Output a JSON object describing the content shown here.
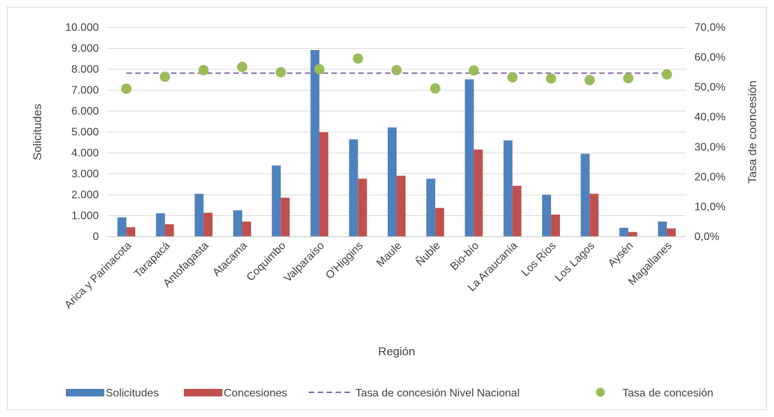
{
  "chart_data": {
    "type": "bar",
    "categories": [
      "Arica y Parinacota",
      "Tarapacá",
      "Antofagasta",
      "Atacama",
      "Coquimbo",
      "Valparaíso",
      "O'Higgins",
      "Maule",
      "Ñuble",
      "Bio-bío",
      "La Araucanía",
      "Los Ríos",
      "Los Lagos",
      "Aysén",
      "Magallanes"
    ],
    "series": [
      {
        "name": "Solicitudes",
        "kind": "bar",
        "axis": "left",
        "color": "#4f81bd",
        "values": [
          920,
          1120,
          2050,
          1260,
          3400,
          8920,
          4650,
          5220,
          2770,
          7520,
          4600,
          2000,
          3960,
          420,
          720
        ]
      },
      {
        "name": "Concesiones",
        "kind": "bar",
        "axis": "left",
        "color": "#c0504d",
        "values": [
          450,
          590,
          1140,
          720,
          1860,
          4990,
          2770,
          2910,
          1370,
          4160,
          2430,
          1050,
          2050,
          220,
          390
        ]
      },
      {
        "name": "Tasa de concesión Nivel Nacional",
        "kind": "line-dashed",
        "axis": "right",
        "color": "#8064a2",
        "values": [
          54.7,
          54.7,
          54.7,
          54.7,
          54.7,
          54.7,
          54.7,
          54.7,
          54.7,
          54.7,
          54.7,
          54.7,
          54.7,
          54.7,
          54.7
        ]
      },
      {
        "name": "Tasa de concesión",
        "kind": "scatter",
        "axis": "right",
        "color": "#9bbb59",
        "values": [
          49.5,
          53.5,
          55.7,
          56.8,
          55.0,
          56.0,
          59.6,
          55.7,
          49.6,
          55.6,
          53.3,
          52.9,
          52.4,
          53.0,
          54.3
        ]
      }
    ],
    "xlabel": "Región",
    "ylabel": "Solicitudes",
    "y2label": "Tasa de cooncesión",
    "ylim": [
      0,
      10000
    ],
    "y2lim": [
      0,
      70
    ],
    "yticks": [
      "0",
      "1.000",
      "2.000",
      "3.000",
      "4.000",
      "5.000",
      "6.000",
      "7.000",
      "8.000",
      "9.000",
      "10.000"
    ],
    "y2ticks": [
      "0,0%",
      "10,0%",
      "20,0%",
      "30,0%",
      "40,0%",
      "50,0%",
      "60,0%",
      "70,0%"
    ],
    "grid": true,
    "legend_position": "bottom"
  }
}
